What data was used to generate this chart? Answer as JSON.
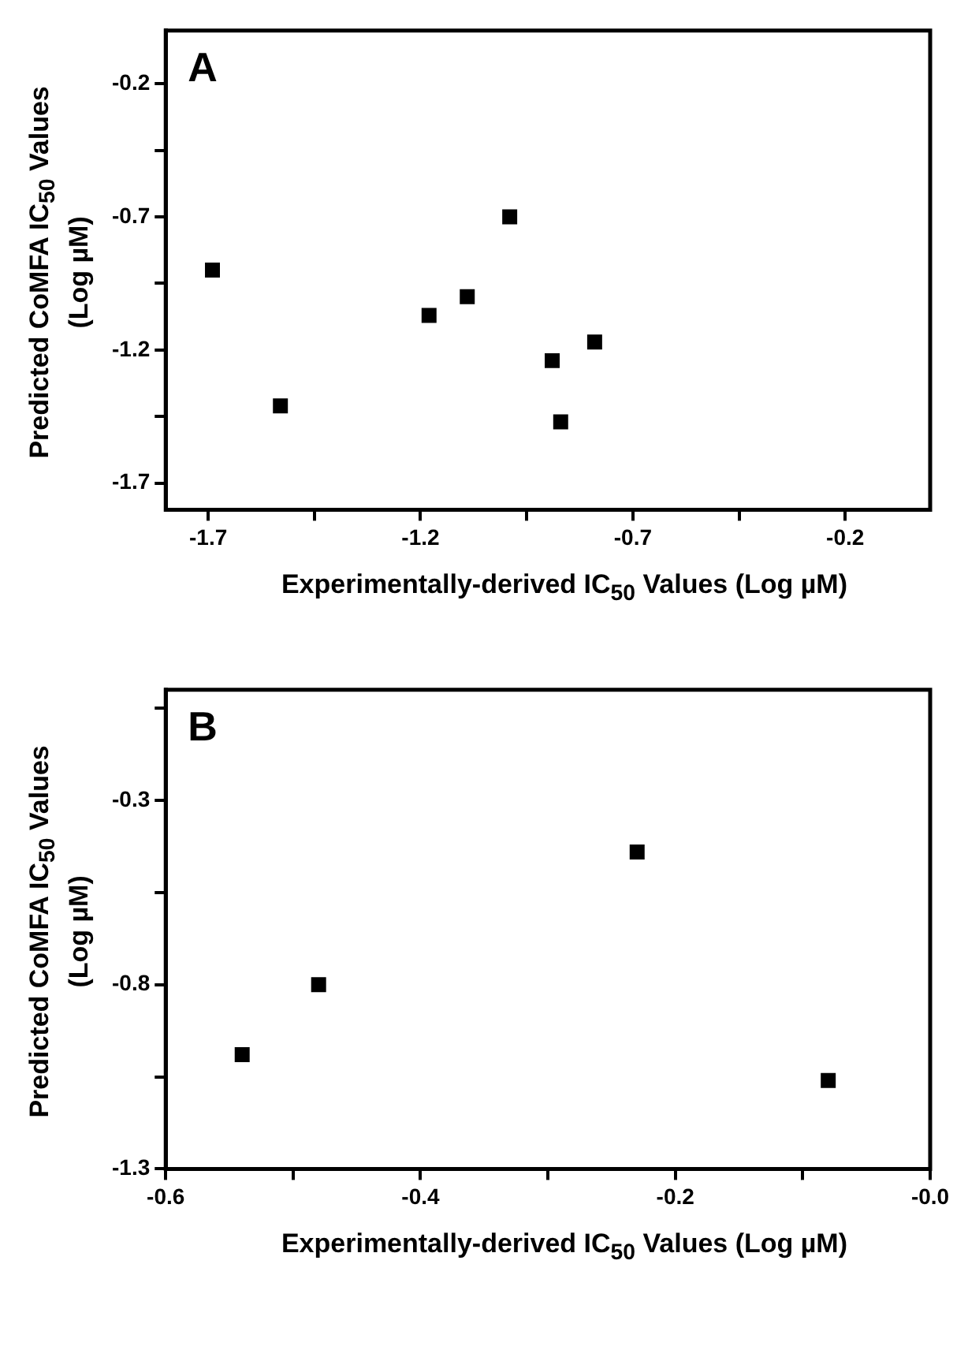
{
  "chart_data": [
    {
      "type": "scatter",
      "xlabel": "Experimentally-derived IC$_{50}$ Values (Log µM)",
      "ylabel": "Predicted CoMFA IC$_{50}$ Values (Log µM)",
      "annotations": [
        "A"
      ],
      "color": "#000000",
      "marker": "square",
      "grid": false,
      "x": [
        -1.69,
        -1.53,
        -1.18,
        -1.09,
        -0.99,
        -0.89,
        -0.87,
        -0.79
      ],
      "values": [
        -0.9,
        -1.41,
        -1.07,
        -1.0,
        -0.7,
        -1.24,
        -1.47,
        -1.17
      ],
      "xlim": [
        -1.8,
        0
      ],
      "ylim": [
        -1.8,
        0
      ],
      "xticks": [
        -1.7,
        {
          "value": -1.45,
          "label": null
        },
        -1.2,
        {
          "value": -0.95,
          "label": null
        },
        -0.7,
        {
          "value": -0.45,
          "label": null
        },
        -0.2
      ],
      "yticks": [
        -1.7,
        {
          "value": -1.45,
          "label": null
        },
        -1.2,
        {
          "value": -0.95,
          "label": null
        },
        -0.7,
        {
          "value": -0.45,
          "label": null
        },
        -0.2
      ]
    },
    {
      "type": "scatter",
      "xlabel": "Experimentally-derived IC$_{50}$ Values (Log µM)",
      "ylabel": "Predicted CoMFA IC$_{50}$ Values (Log µM)",
      "annotations": [
        "B"
      ],
      "color": "#000000",
      "marker": "square",
      "grid": false,
      "x": [
        -0.54,
        -0.48,
        -0.23,
        -0.08
      ],
      "values": [
        -0.99,
        -0.8,
        -0.44,
        -1.06
      ],
      "xlim": [
        -0.6,
        0
      ],
      "ylim": [
        -1.3,
        0
      ],
      "xticks": [
        -0.6,
        {
          "value": -0.5,
          "label": null
        },
        -0.4,
        {
          "value": -0.3,
          "label": null
        },
        -0.2,
        {
          "value": -0.1,
          "label": null
        },
        {
          "value": 0,
          "label": "-0.0"
        }
      ],
      "yticks": [
        -1.3,
        {
          "value": -1.05,
          "label": null
        },
        -0.8,
        {
          "value": -0.55,
          "label": null
        },
        -0.3,
        {
          "value": -0.05,
          "label": null
        }
      ]
    }
  ]
}
